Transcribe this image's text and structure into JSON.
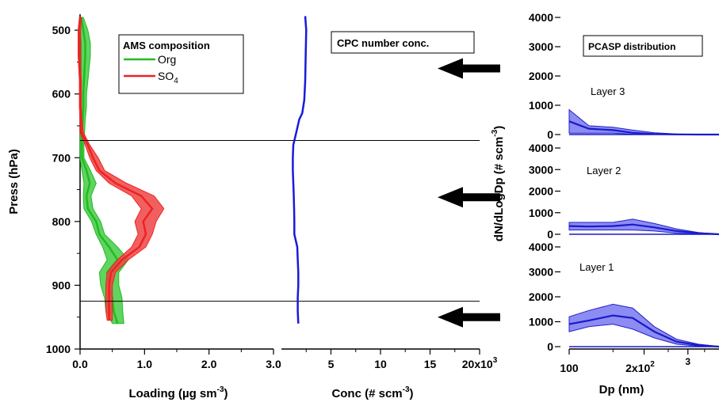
{
  "chart_data": [
    {
      "type": "line",
      "title": "AMS composition",
      "xlabel": "Loading (µg sm",
      "xlabel_sup": "-3",
      "xlabel_end": ")",
      "ylabel": "Press (hPa)",
      "xlim": [
        0,
        3.0
      ],
      "ylim": [
        1000,
        475
      ],
      "xtick_labels": [
        "0.0",
        "1.0",
        "2.0",
        "3.0"
      ],
      "xticks": [
        0,
        1,
        2,
        3
      ],
      "yticks": [
        500,
        600,
        700,
        800,
        900,
        1000
      ],
      "ytick_labels": [
        "500",
        "600",
        "700",
        "800",
        "900",
        "1000"
      ],
      "legend_position": "top-right",
      "series": [
        {
          "name": "Org",
          "label_main": "Org",
          "label_sub": "",
          "color": "#22bb22",
          "fill": "#44cc44",
          "points": [
            [
              0.02,
              480
            ],
            [
              0.05,
              500
            ],
            [
              0.08,
              520
            ],
            [
              0.08,
              540
            ],
            [
              0.07,
              560
            ],
            [
              0.06,
              580
            ],
            [
              0.05,
              600
            ],
            [
              0.05,
              620
            ],
            [
              0.04,
              640
            ],
            [
              0.03,
              660
            ],
            [
              0.03,
              680
            ],
            [
              0.03,
              700
            ],
            [
              0.1,
              720
            ],
            [
              0.15,
              740
            ],
            [
              0.1,
              760
            ],
            [
              0.12,
              780
            ],
            [
              0.25,
              800
            ],
            [
              0.3,
              820
            ],
            [
              0.45,
              840
            ],
            [
              0.58,
              860
            ],
            [
              0.42,
              880
            ],
            [
              0.45,
              900
            ],
            [
              0.5,
              920
            ],
            [
              0.52,
              940
            ],
            [
              0.58,
              960
            ]
          ],
          "lower": [
            0.0,
            0.0,
            0.02,
            0.02,
            0.02,
            0.01,
            0.0,
            0.0,
            0.0,
            0.0,
            0.0,
            0.0,
            0.03,
            0.06,
            0.05,
            0.06,
            0.18,
            0.25,
            0.35,
            0.42,
            0.3,
            0.32,
            0.38,
            0.4,
            0.5
          ],
          "upper": [
            0.05,
            0.12,
            0.16,
            0.16,
            0.14,
            0.12,
            0.1,
            0.1,
            0.08,
            0.07,
            0.06,
            0.06,
            0.16,
            0.25,
            0.17,
            0.2,
            0.32,
            0.38,
            0.58,
            0.75,
            0.6,
            0.6,
            0.65,
            0.66,
            0.68
          ]
        },
        {
          "name": "SO4",
          "label_main": "SO",
          "label_sub": "4",
          "color": "#ee2222",
          "fill": "#ee4444",
          "points": [
            [
              0.0,
              480
            ],
            [
              -0.02,
              500
            ],
            [
              -0.02,
              520
            ],
            [
              -0.02,
              540
            ],
            [
              -0.01,
              560
            ],
            [
              0.0,
              580
            ],
            [
              0.0,
              600
            ],
            [
              0.0,
              620
            ],
            [
              0.01,
              640
            ],
            [
              0.02,
              660
            ],
            [
              0.12,
              680
            ],
            [
              0.2,
              700
            ],
            [
              0.3,
              720
            ],
            [
              0.55,
              740
            ],
            [
              0.95,
              760
            ],
            [
              1.12,
              780
            ],
            [
              0.98,
              800
            ],
            [
              1.02,
              820
            ],
            [
              0.92,
              840
            ],
            [
              0.65,
              860
            ],
            [
              0.48,
              880
            ],
            [
              0.45,
              900
            ],
            [
              0.45,
              920
            ],
            [
              0.45,
              940
            ],
            [
              0.45,
              955
            ]
          ],
          "lower": [
            -0.01,
            -0.03,
            -0.03,
            -0.03,
            -0.02,
            -0.01,
            -0.01,
            -0.01,
            0.0,
            0.0,
            0.08,
            0.15,
            0.25,
            0.45,
            0.8,
            0.95,
            0.85,
            0.9,
            0.8,
            0.58,
            0.42,
            0.4,
            0.4,
            0.4,
            0.42
          ],
          "upper": [
            0.02,
            0.01,
            0.01,
            0.01,
            0.01,
            0.02,
            0.02,
            0.02,
            0.03,
            0.05,
            0.15,
            0.28,
            0.38,
            0.72,
            1.15,
            1.3,
            1.18,
            1.12,
            1.02,
            0.75,
            0.55,
            0.5,
            0.5,
            0.5,
            0.5
          ]
        }
      ],
      "hlines": [
        673,
        925
      ]
    },
    {
      "type": "line",
      "title": "CPC number conc.",
      "xlabel": "Conc (# scm",
      "xlabel_sup": "-3",
      "xlabel_end": ")",
      "xlim": [
        0,
        20000
      ],
      "ylim": [
        1000,
        475
      ],
      "xtick_labels": [
        "5",
        "10",
        "15",
        "20x10"
      ],
      "xtick_sup": "3",
      "xticks": [
        5000,
        10000,
        15000,
        20000
      ],
      "series": [
        {
          "name": "",
          "color": "#1a1adb",
          "points": [
            [
              2400,
              478
            ],
            [
              2500,
              500
            ],
            [
              2450,
              540
            ],
            [
              2400,
              580
            ],
            [
              2300,
              610
            ],
            [
              2100,
              630
            ],
            [
              1800,
              640
            ],
            [
              1500,
              660
            ],
            [
              1200,
              680
            ],
            [
              1150,
              700
            ],
            [
              1150,
              720
            ],
            [
              1200,
              740
            ],
            [
              1250,
              760
            ],
            [
              1280,
              780
            ],
            [
              1300,
              800
            ],
            [
              1300,
              820
            ],
            [
              1600,
              840
            ],
            [
              1650,
              860
            ],
            [
              1700,
              880
            ],
            [
              1700,
              900
            ],
            [
              1650,
              920
            ],
            [
              1650,
              940
            ],
            [
              1700,
              960
            ]
          ]
        }
      ],
      "arrows_at_hpa": [
        560,
        762,
        950
      ]
    },
    {
      "type": "area",
      "title": "PCASP distribution",
      "xlabel": "Dp (nm)",
      "ylabel": "dN/dLogDp (# scm",
      "ylabel_sup": "-3",
      "ylabel_end": ")",
      "x_scale": "log",
      "xlim": [
        100,
        400
      ],
      "xtick_labels": [
        "100",
        "2x10",
        "3"
      ],
      "xtick_sup": "2",
      "ylim": [
        0,
        4000
      ],
      "yticks": [
        0,
        1000,
        2000,
        3000,
        4000
      ],
      "ytick_labels": [
        "0",
        "1000",
        "2000",
        "3000",
        "4000"
      ],
      "panels": [
        {
          "name": "Layer 3",
          "x": [
            100,
            120,
            150,
            180,
            220,
            270,
            330,
            400
          ],
          "mean": [
            450,
            200,
            150,
            60,
            20,
            5,
            0,
            0
          ],
          "lower": [
            50,
            50,
            50,
            10,
            0,
            0,
            0,
            0
          ],
          "upper": [
            850,
            300,
            250,
            150,
            60,
            20,
            0,
            0
          ]
        },
        {
          "name": "Layer 2",
          "x": [
            100,
            120,
            150,
            180,
            220,
            270,
            330,
            400
          ],
          "mean": [
            380,
            360,
            380,
            450,
            320,
            150,
            50,
            0
          ],
          "lower": [
            200,
            200,
            200,
            200,
            150,
            50,
            10,
            0
          ],
          "upper": [
            550,
            550,
            550,
            700,
            500,
            250,
            80,
            0
          ]
        },
        {
          "name": "Layer 1",
          "x": [
            100,
            120,
            150,
            180,
            220,
            270,
            330,
            400
          ],
          "mean": [
            900,
            1050,
            1250,
            1150,
            600,
            200,
            60,
            0
          ],
          "lower": [
            600,
            800,
            900,
            700,
            350,
            100,
            20,
            0
          ],
          "upper": [
            1200,
            1450,
            1700,
            1550,
            800,
            300,
            100,
            10
          ]
        }
      ]
    }
  ]
}
